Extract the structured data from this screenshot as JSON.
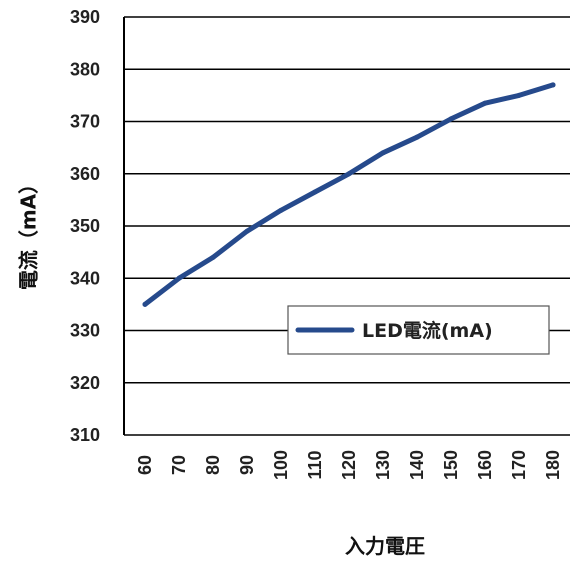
{
  "chart_data": {
    "type": "line",
    "xlabel": "入力電圧",
    "ylabel": "電流（mA）",
    "x": [
      60,
      70,
      80,
      90,
      100,
      110,
      120,
      130,
      140,
      150,
      160,
      170,
      180
    ],
    "x_tick_labels": [
      "60",
      "70",
      "80",
      "90",
      "100",
      "110",
      "120",
      "130",
      "140",
      "150",
      "160",
      "170",
      "180"
    ],
    "ylim": [
      310,
      390
    ],
    "y_ticks": [
      310,
      320,
      330,
      340,
      350,
      360,
      370,
      380,
      390
    ],
    "y_tick_labels": [
      "310",
      "320",
      "330",
      "340",
      "350",
      "360",
      "370",
      "380",
      "390"
    ],
    "grid": "horizontal",
    "legend_position": "right-middle",
    "series": [
      {
        "name": "LED電流(mA)",
        "color": "#264a8c",
        "values": [
          335,
          340,
          344,
          349,
          353,
          356.5,
          360,
          364,
          367,
          370.5,
          373.5,
          375,
          377
        ]
      }
    ]
  }
}
